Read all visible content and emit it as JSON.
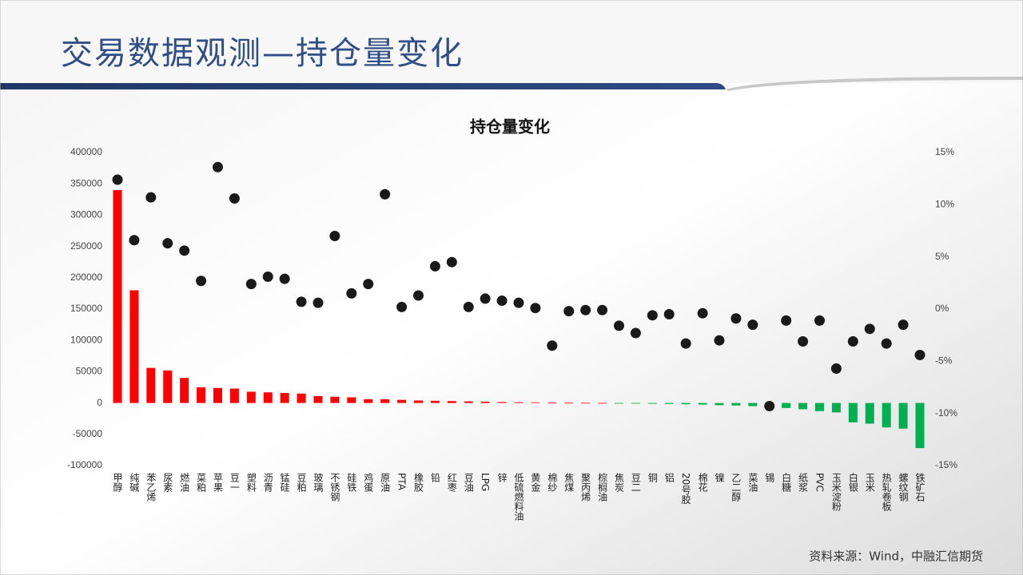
{
  "header": {
    "title": "交易数据观测—持仓量变化"
  },
  "footer": {
    "source": "资料来源：Wind，中融汇信期货"
  },
  "chart_data": {
    "type": "bar",
    "title": "持仓量变化",
    "categories": [
      "甲醇",
      "纯碱",
      "苯乙烯",
      "尿素",
      "燃油",
      "菜粕",
      "苹果",
      "豆一",
      "塑料",
      "沥青",
      "锰硅",
      "豆粕",
      "玻璃",
      "不锈钢",
      "硅铁",
      "鸡蛋",
      "原油",
      "PTA",
      "橡胶",
      "铅",
      "红枣",
      "豆油",
      "LPG",
      "锌",
      "低硫燃料油",
      "黄金",
      "棉纱",
      "焦煤",
      "聚丙烯",
      "棕榈油",
      "焦炭",
      "豆二",
      "铜",
      "铝",
      "20号胶",
      "棉花",
      "镍",
      "乙二醇",
      "菜油",
      "锡",
      "白糖",
      "纸浆",
      "PVC",
      "玉米淀粉",
      "白银",
      "玉米",
      "热轧卷板",
      "螺纹钢",
      "铁矿石"
    ],
    "series": [
      {
        "type": "bar",
        "positive_color": "#ff0000",
        "negative_color": "#00b050",
        "values": [
          340000,
          180000,
          56000,
          52000,
          40000,
          25000,
          24000,
          23000,
          18000,
          17000,
          16000,
          15000,
          11000,
          10000,
          9000,
          6000,
          6000,
          5000,
          4000,
          3500,
          3000,
          2500,
          2000,
          1500,
          1200,
          1000,
          500,
          300,
          200,
          100,
          -500,
          -1000,
          -1200,
          -1500,
          -2000,
          -2500,
          -3500,
          -4000,
          -5000,
          -6500,
          -8000,
          -10000,
          -13000,
          -15000,
          -31000,
          -33000,
          -39000,
          -41000,
          -72000
        ]
      },
      {
        "type": "scatter",
        "color": "#1a1a1a",
        "axis": "y2",
        "values": [
          12.4,
          6.6,
          10.7,
          6.3,
          5.6,
          2.7,
          13.6,
          10.6,
          2.4,
          3.1,
          2.9,
          0.7,
          0.6,
          7.0,
          1.5,
          2.4,
          11.0,
          0.2,
          1.3,
          4.1,
          4.5,
          0.2,
          1.0,
          0.8,
          0.6,
          0.1,
          -3.5,
          -0.2,
          -0.1,
          -0.1,
          -1.6,
          -2.3,
          -0.6,
          -0.5,
          -3.3,
          -0.4,
          -3.0,
          -0.9,
          -1.5,
          -9.3,
          -1.1,
          -3.1,
          -1.1,
          -5.7,
          -3.1,
          -1.9,
          -3.3,
          -1.5,
          -4.4
        ]
      }
    ],
    "ylim": [
      -100000,
      400000
    ],
    "yticks": [
      -100000,
      -50000,
      0,
      50000,
      100000,
      150000,
      200000,
      250000,
      300000,
      350000,
      400000
    ],
    "y2lim": [
      -15,
      15
    ],
    "y2ticks": [
      {
        "value": -15,
        "label": "-15%"
      },
      {
        "value": -10,
        "label": "-10%"
      },
      {
        "value": -5,
        "label": "-5%"
      },
      {
        "value": 0,
        "label": "0%"
      },
      {
        "value": 5,
        "label": "5%"
      },
      {
        "value": 10,
        "label": "10%"
      },
      {
        "value": 15,
        "label": "15%"
      }
    ]
  }
}
